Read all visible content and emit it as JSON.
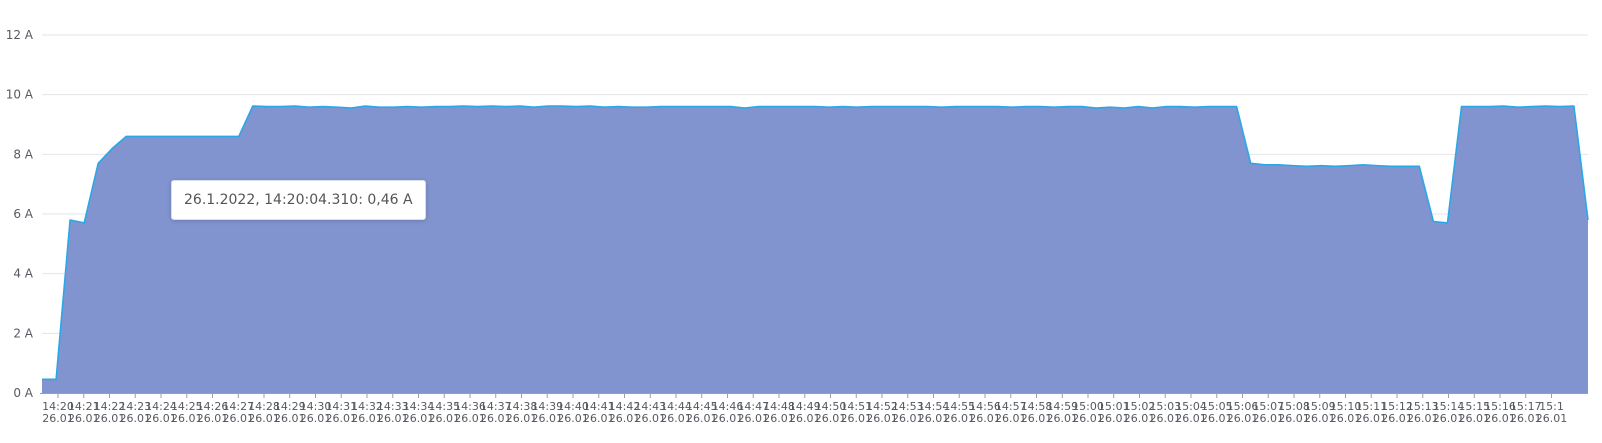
{
  "chart_data": {
    "type": "area",
    "y_unit": "A",
    "ylim": [
      0,
      12
    ],
    "y_ticks": [
      "0 A",
      "2 A",
      "4 A",
      "6 A",
      "8 A",
      "10 A",
      "12 A"
    ],
    "grid": true,
    "area_fill": "#8294cf",
    "line_color": "#2aa7e6",
    "x_time_labels": [
      "14:20",
      "14:21",
      "14:22",
      "14:23",
      "14:24",
      "14:25",
      "14:26",
      "14:27",
      "14:28",
      "14:29",
      "14:30",
      "14:31",
      "14:32",
      "14:33",
      "14:34",
      "14:35",
      "14:36",
      "14:37",
      "14:38",
      "14:39",
      "14:40",
      "14:41",
      "14:42",
      "14:43",
      "14:44",
      "14:45",
      "14:46",
      "14:47",
      "14:48",
      "14:49",
      "14:50",
      "14:51",
      "14:52",
      "14:53",
      "14:54",
      "14:55",
      "14:56",
      "14:57",
      "14:58",
      "14:59",
      "15:00",
      "15:01",
      "15:02",
      "15:03",
      "15:04",
      "15:05",
      "15:06",
      "15:07",
      "15:08",
      "15:09",
      "15:10",
      "15:11",
      "15:12",
      "15:13",
      "15:14",
      "15:15",
      "15:16",
      "15:17",
      "15:1"
    ],
    "x_date_label": "26.01",
    "series": [
      {
        "values": [
          0.46,
          0.46,
          5.8,
          5.7,
          7.7,
          8.2,
          8.6,
          8.6,
          8.6,
          8.6,
          8.6,
          8.6,
          8.6,
          8.6,
          8.6,
          9.62,
          9.6,
          9.6,
          9.62,
          9.58,
          9.6,
          9.58,
          9.55,
          9.62,
          9.58,
          9.58,
          9.6,
          9.58,
          9.6,
          9.6,
          9.62,
          9.6,
          9.62,
          9.6,
          9.62,
          9.58,
          9.62,
          9.62,
          9.6,
          9.62,
          9.58,
          9.6,
          9.58,
          9.58,
          9.6,
          9.6,
          9.6,
          9.6,
          9.6,
          9.6,
          9.55,
          9.6,
          9.6,
          9.6,
          9.6,
          9.6,
          9.58,
          9.6,
          9.58,
          9.6,
          9.6,
          9.6,
          9.6,
          9.6,
          9.58,
          9.6,
          9.6,
          9.6,
          9.6,
          9.58,
          9.6,
          9.6,
          9.58,
          9.6,
          9.6,
          9.55,
          9.58,
          9.55,
          9.6,
          9.55,
          9.6,
          9.6,
          9.58,
          9.6,
          9.6,
          9.6,
          7.7,
          7.65,
          7.65,
          7.62,
          7.6,
          7.62,
          7.6,
          7.62,
          7.65,
          7.62,
          7.6,
          7.6,
          7.6,
          5.75,
          5.7,
          9.6,
          9.6,
          9.6,
          9.62,
          9.58,
          9.6,
          9.62,
          9.6,
          9.62,
          5.8
        ]
      }
    ]
  },
  "tooltip": {
    "text": "26.1.2022, 14:20:04.310: 0,46 A"
  }
}
